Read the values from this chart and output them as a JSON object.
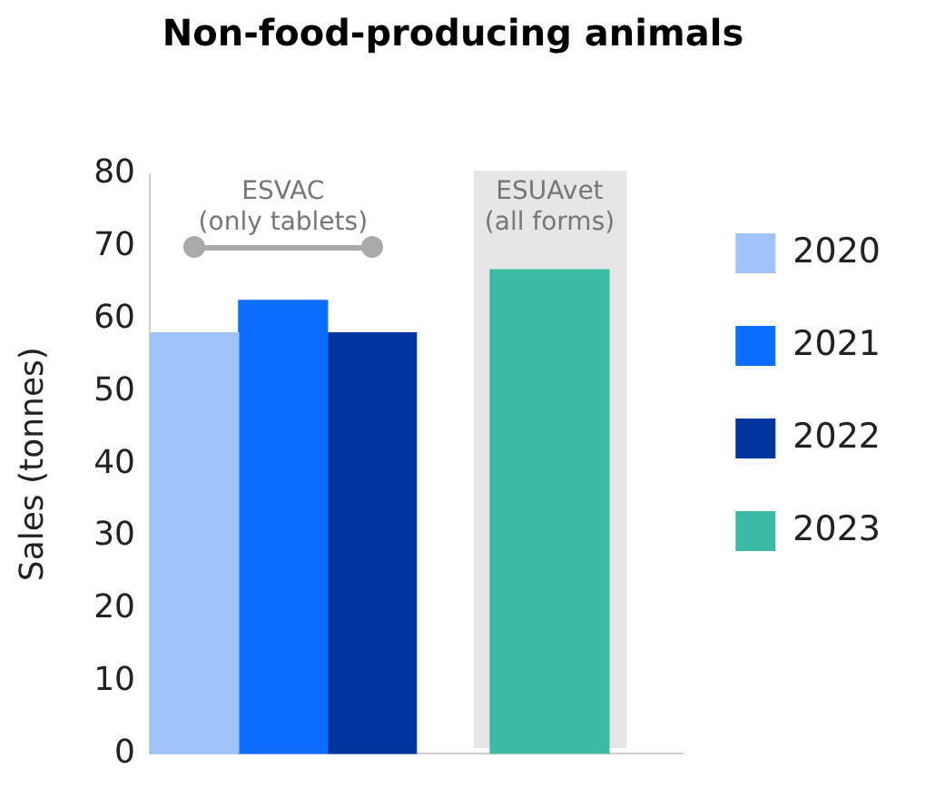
{
  "chart_data": {
    "type": "bar",
    "title": "Non-food-producing animals",
    "ylabel": "Sales (tonnes)",
    "categories": [
      null,
      null
    ],
    "series": [
      {
        "name": "2020",
        "color": "#a0c4fa",
        "values": [
          58.1,
          null
        ]
      },
      {
        "name": "2021",
        "color": "#0d6efd",
        "values": [
          62.6,
          null
        ]
      },
      {
        "name": "2022",
        "color": "#00359e",
        "values": [
          58.1,
          null
        ]
      },
      {
        "name": "2023",
        "color": "#3bbba4",
        "values": [
          null,
          66.9
        ]
      }
    ],
    "ylim": [
      0,
      80
    ],
    "yticks": [
      0,
      10,
      20,
      30,
      40,
      50,
      60,
      70,
      80
    ],
    "grid": false,
    "legend": "right",
    "tick_labels": "y",
    "annotations": [
      "ESVAC\n(only tablets)",
      "ESUAvet\n(all forms)"
    ]
  }
}
